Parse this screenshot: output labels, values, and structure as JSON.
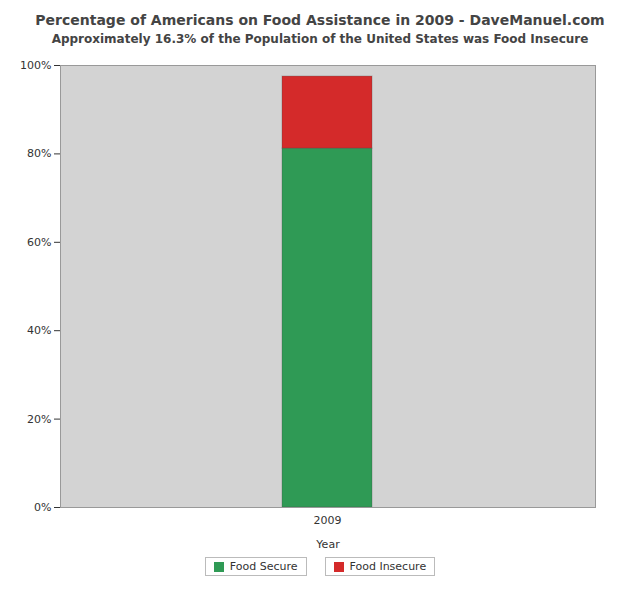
{
  "chart_data": {
    "type": "bar",
    "stacked": true,
    "title": "Percentage of Americans on Food Assistance in 2009 - DaveManuel.com",
    "subtitle": "Approximately 16.3% of the Population of the United States was Food Insecure",
    "x_label": "Year",
    "categories": [
      "2009"
    ],
    "series": [
      {
        "name": "Food Secure",
        "color": "#2f9a55",
        "values": [
          81.2
        ]
      },
      {
        "name": "Food Insecure",
        "color": "#d42a2a",
        "values": [
          16.3
        ]
      }
    ],
    "ylim": [
      0,
      100
    ],
    "yticks": [
      {
        "value": 0,
        "label": "0%"
      },
      {
        "value": 20,
        "label": "20%"
      },
      {
        "value": 40,
        "label": "40%"
      },
      {
        "value": 60,
        "label": "60%"
      },
      {
        "value": 80,
        "label": "80%"
      },
      {
        "value": 100,
        "label": "100%"
      }
    ],
    "grid": true,
    "legend": "bottom"
  }
}
